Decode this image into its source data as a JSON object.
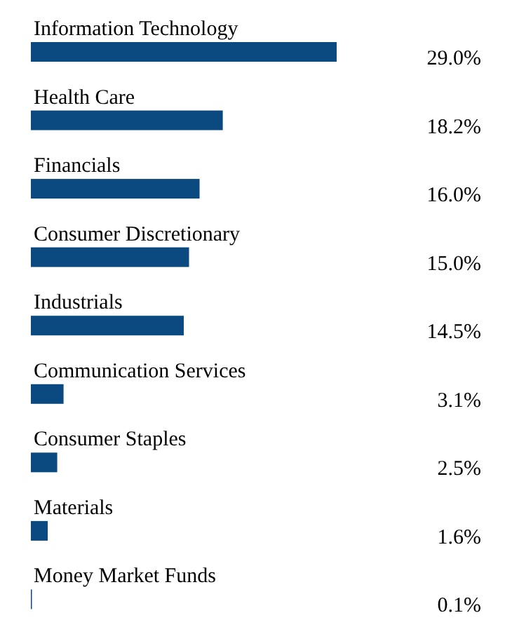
{
  "chart_data": {
    "type": "bar",
    "orientation": "horizontal",
    "categories": [
      "Information Technology",
      "Health Care",
      "Financials",
      "Consumer Discretionary",
      "Industrials",
      "Communication Services",
      "Consumer Staples",
      "Materials",
      "Money Market Funds"
    ],
    "values": [
      29.0,
      18.2,
      16.0,
      15.0,
      14.5,
      3.1,
      2.5,
      1.6,
      0.1
    ],
    "value_labels": [
      "29.0%",
      "18.2%",
      "16.0%",
      "15.0%",
      "14.5%",
      "3.1%",
      "2.5%",
      "1.6%",
      "0.1%"
    ],
    "color": "#0b4a80"
  }
}
